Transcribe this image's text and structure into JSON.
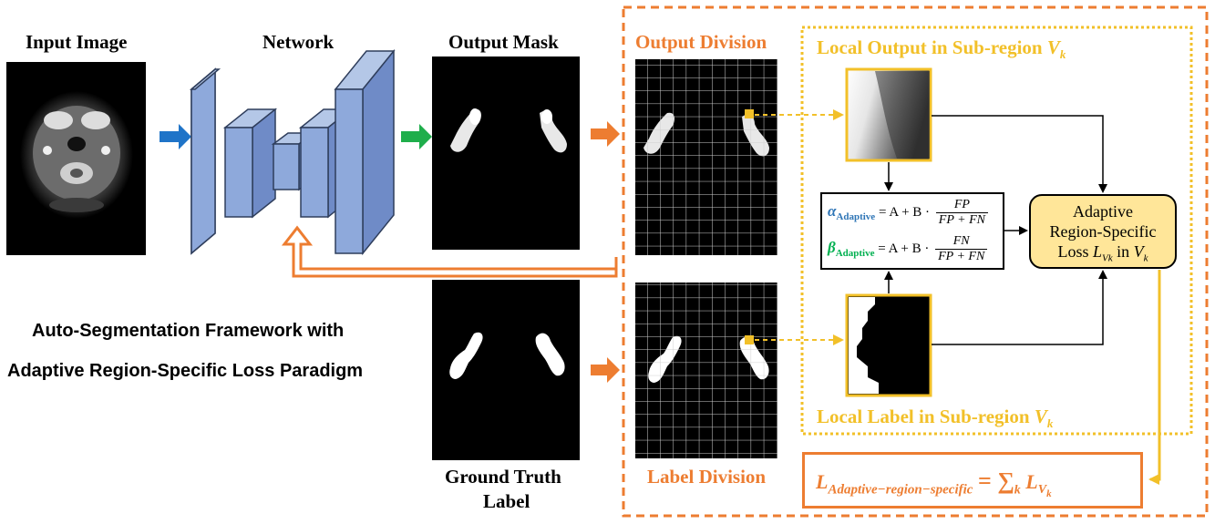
{
  "labels": {
    "input_image": "Input Image",
    "network": "Network",
    "output_mask": "Output Mask",
    "output_division": "Output Division",
    "label_division": "Label Division",
    "ground_truth_line1": "Ground Truth",
    "ground_truth_line2": "Label",
    "local_output": "Local Output in Sub-region",
    "local_label": "Local Label in Sub-region",
    "subregion_symbol": "V",
    "subregion_index": "k",
    "framework_line1": "Auto-Segmentation Framework with",
    "framework_line2": "Adaptive Region-Specific Loss Paradigm"
  },
  "equation": {
    "alpha_symbol": "α",
    "beta_symbol": "β",
    "subscript": "Adaptive",
    "rhs": "= A + B ·",
    "alpha_num": "FP",
    "beta_num": "FN",
    "denominator": "FP + FN"
  },
  "adaptive_loss": {
    "line1": "Adaptive",
    "line2": "Region-Specific",
    "line3_prefix": "Loss",
    "line3_mid": "in",
    "loss_symbol": "L",
    "loss_sub": "Vk"
  },
  "total_loss": {
    "symbol": "L",
    "subscript": "Adaptive−region−specific",
    "equals_sum": "= ∑",
    "sum_index": "k",
    "term_symbol": "L",
    "term_sub": "V",
    "term_sub_index": "k"
  },
  "colors": {
    "orange": "#ED7D31",
    "gold": "#F2C029",
    "blue_arrow": "#1F74C8",
    "green_arrow": "#1FAE4B",
    "network_block": "#8EA9DB",
    "loss_box_fill": "#FFE699",
    "alpha_color": "#2E75B6",
    "beta_color": "#00B050"
  }
}
